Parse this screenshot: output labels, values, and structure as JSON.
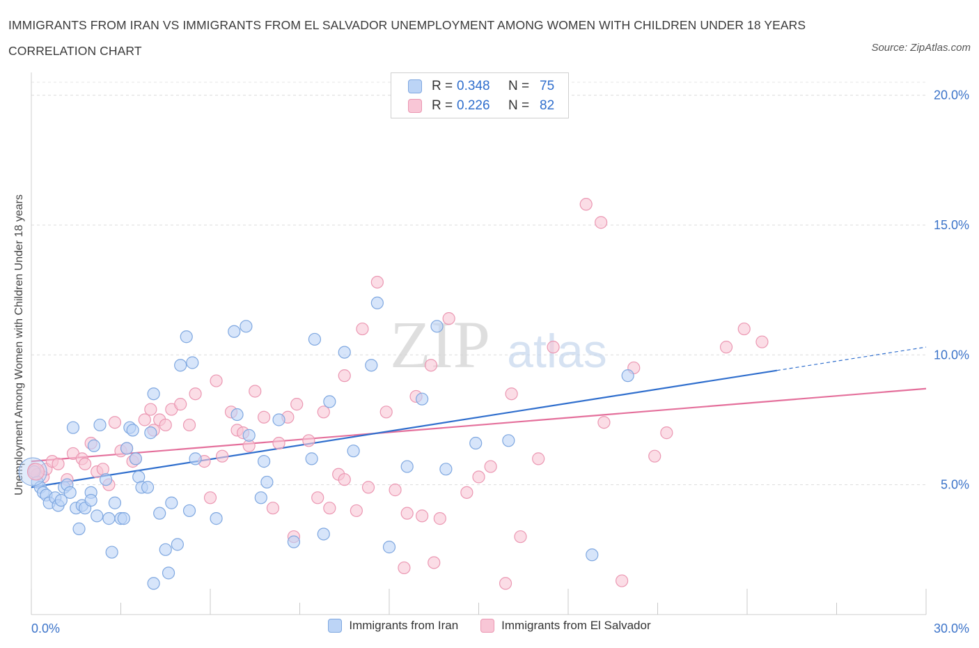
{
  "header": {
    "title": "IMMIGRANTS FROM IRAN VS IMMIGRANTS FROM EL SALVADOR UNEMPLOYMENT AMONG WOMEN WITH CHILDREN UNDER 18 YEARS CORRELATION CHART",
    "source": "Source: ZipAtlas.com"
  },
  "watermark": {
    "zip": "ZIP",
    "atlas": "atlas"
  },
  "legend": {
    "iran": {
      "r_label": "R =",
      "r_value": "0.348",
      "n_label": "N =",
      "n_value": "75",
      "name": "Immigrants from Iran"
    },
    "salvador": {
      "r_label": "R =",
      "r_value": "0.226",
      "n_label": "N =",
      "n_value": "82",
      "name": "Immigrants from El Salvador"
    }
  },
  "colors": {
    "iran_fill": "#bcd4f6",
    "iran_stroke": "#7ea7e0",
    "iran_line": "#2f6ecd",
    "salvador_fill": "#f8c6d6",
    "salvador_stroke": "#eb97b2",
    "salvador_line": "#e46f9b",
    "tick_label": "#3b73c9"
  },
  "chart_data": {
    "type": "scatter",
    "title": "IMMIGRANTS FROM IRAN VS IMMIGRANTS FROM EL SALVADOR UNEMPLOYMENT AMONG WOMEN WITH CHILDREN UNDER 18 YEARS CORRELATION CHART",
    "xlabel": "",
    "ylabel": "Unemployment Among Women with Children Under 18 years",
    "xlim": [
      0,
      30
    ],
    "ylim": [
      0,
      20.5
    ],
    "x_tick_labels": [
      {
        "value": 0,
        "label": "0.0%"
      },
      {
        "value": 30,
        "label": "30.0%"
      }
    ],
    "y_tick_labels": [
      {
        "value": 5,
        "label": "5.0%"
      },
      {
        "value": 10,
        "label": "10.0%"
      },
      {
        "value": 15,
        "label": "15.0%"
      },
      {
        "value": 20,
        "label": "20.0%"
      }
    ],
    "grid": true,
    "series": [
      {
        "name": "Immigrants from Iran",
        "r": 0.348,
        "n": 75,
        "trend": {
          "x0": 0,
          "y0": 4.9,
          "x1": 25,
          "y1": 9.4,
          "dash_to_x": 30,
          "dash_to_y": 10.3
        },
        "points": [
          [
            0.1,
            5.5
          ],
          [
            0.2,
            5.1
          ],
          [
            0.3,
            4.9
          ],
          [
            0.4,
            4.7
          ],
          [
            0.5,
            4.6
          ],
          [
            0.6,
            4.3
          ],
          [
            0.8,
            4.5
          ],
          [
            0.9,
            4.2
          ],
          [
            1.0,
            4.4
          ],
          [
            1.1,
            4.9
          ],
          [
            1.2,
            5.0
          ],
          [
            1.3,
            4.7
          ],
          [
            1.4,
            7.2
          ],
          [
            1.5,
            4.1
          ],
          [
            1.6,
            3.3
          ],
          [
            1.7,
            4.2
          ],
          [
            1.8,
            4.1
          ],
          [
            2.0,
            4.7
          ],
          [
            2.0,
            4.4
          ],
          [
            2.1,
            6.5
          ],
          [
            2.2,
            3.8
          ],
          [
            2.3,
            7.3
          ],
          [
            2.5,
            5.2
          ],
          [
            2.6,
            3.7
          ],
          [
            2.7,
            2.4
          ],
          [
            2.8,
            4.3
          ],
          [
            3.0,
            3.7
          ],
          [
            3.1,
            3.7
          ],
          [
            3.2,
            6.4
          ],
          [
            3.3,
            7.2
          ],
          [
            3.4,
            7.1
          ],
          [
            3.5,
            6.0
          ],
          [
            3.6,
            5.3
          ],
          [
            3.7,
            4.9
          ],
          [
            3.9,
            4.9
          ],
          [
            4.0,
            7.0
          ],
          [
            4.1,
            8.5
          ],
          [
            4.1,
            1.2
          ],
          [
            4.3,
            3.9
          ],
          [
            4.5,
            2.5
          ],
          [
            4.6,
            1.6
          ],
          [
            4.7,
            4.3
          ],
          [
            4.9,
            2.7
          ],
          [
            5.0,
            9.6
          ],
          [
            5.2,
            10.7
          ],
          [
            5.3,
            4.0
          ],
          [
            5.4,
            9.7
          ],
          [
            5.5,
            6.0
          ],
          [
            6.2,
            3.7
          ],
          [
            6.8,
            10.9
          ],
          [
            6.9,
            7.7
          ],
          [
            7.2,
            11.1
          ],
          [
            7.3,
            6.9
          ],
          [
            7.7,
            4.5
          ],
          [
            7.8,
            5.9
          ],
          [
            7.9,
            5.1
          ],
          [
            8.3,
            7.5
          ],
          [
            8.8,
            2.8
          ],
          [
            9.4,
            6.0
          ],
          [
            9.5,
            10.6
          ],
          [
            9.8,
            3.1
          ],
          [
            10.0,
            8.2
          ],
          [
            10.5,
            10.1
          ],
          [
            10.8,
            6.3
          ],
          [
            11.4,
            9.6
          ],
          [
            11.6,
            12.0
          ],
          [
            12.0,
            2.6
          ],
          [
            12.6,
            5.7
          ],
          [
            13.1,
            8.3
          ],
          [
            13.6,
            11.1
          ],
          [
            13.9,
            5.6
          ],
          [
            14.9,
            6.6
          ],
          [
            16.0,
            6.7
          ],
          [
            18.8,
            2.3
          ],
          [
            20.0,
            9.2
          ]
        ]
      },
      {
        "name": "Immigrants from El Salvador",
        "r": 0.226,
        "n": 82,
        "trend": {
          "x0": 0,
          "y0": 5.9,
          "x1": 30,
          "y1": 8.7
        },
        "points": [
          [
            0.1,
            5.6
          ],
          [
            0.2,
            5.4
          ],
          [
            0.4,
            5.3
          ],
          [
            0.5,
            5.6
          ],
          [
            0.7,
            5.9
          ],
          [
            0.9,
            5.8
          ],
          [
            1.2,
            5.2
          ],
          [
            1.4,
            6.2
          ],
          [
            1.7,
            6.0
          ],
          [
            1.8,
            5.8
          ],
          [
            2.0,
            6.6
          ],
          [
            2.2,
            5.5
          ],
          [
            2.4,
            5.6
          ],
          [
            2.6,
            5.0
          ],
          [
            2.8,
            7.4
          ],
          [
            3.0,
            6.3
          ],
          [
            3.2,
            6.4
          ],
          [
            3.4,
            5.9
          ],
          [
            3.5,
            6.0
          ],
          [
            3.8,
            7.5
          ],
          [
            4.0,
            7.9
          ],
          [
            4.1,
            7.1
          ],
          [
            4.3,
            7.5
          ],
          [
            4.5,
            7.3
          ],
          [
            4.7,
            7.9
          ],
          [
            5.0,
            8.1
          ],
          [
            5.3,
            7.3
          ],
          [
            5.5,
            8.5
          ],
          [
            5.8,
            5.9
          ],
          [
            6.0,
            4.5
          ],
          [
            6.2,
            9.0
          ],
          [
            6.4,
            6.1
          ],
          [
            6.7,
            7.8
          ],
          [
            6.9,
            7.1
          ],
          [
            7.1,
            7.0
          ],
          [
            7.3,
            6.5
          ],
          [
            7.5,
            8.6
          ],
          [
            7.8,
            7.6
          ],
          [
            8.1,
            4.1
          ],
          [
            8.3,
            6.6
          ],
          [
            8.6,
            7.6
          ],
          [
            8.8,
            3.0
          ],
          [
            8.9,
            8.1
          ],
          [
            9.3,
            6.7
          ],
          [
            9.6,
            4.5
          ],
          [
            9.8,
            7.8
          ],
          [
            10.0,
            4.1
          ],
          [
            10.3,
            5.4
          ],
          [
            10.5,
            5.2
          ],
          [
            10.5,
            9.2
          ],
          [
            10.9,
            4.0
          ],
          [
            11.1,
            11.0
          ],
          [
            11.3,
            4.9
          ],
          [
            11.6,
            12.8
          ],
          [
            11.9,
            7.8
          ],
          [
            12.2,
            4.8
          ],
          [
            12.6,
            3.9
          ],
          [
            12.9,
            8.4
          ],
          [
            13.1,
            3.8
          ],
          [
            13.4,
            9.6
          ],
          [
            13.5,
            2.0
          ],
          [
            13.7,
            3.7
          ],
          [
            14.0,
            11.4
          ],
          [
            14.6,
            4.7
          ],
          [
            15.0,
            5.3
          ],
          [
            15.4,
            5.7
          ],
          [
            15.9,
            1.2
          ],
          [
            16.1,
            8.5
          ],
          [
            16.4,
            3.0
          ],
          [
            17.0,
            6.0
          ],
          [
            17.5,
            10.3
          ],
          [
            18.6,
            15.8
          ],
          [
            19.1,
            15.1
          ],
          [
            19.2,
            7.4
          ],
          [
            19.8,
            1.3
          ],
          [
            20.2,
            9.5
          ],
          [
            20.9,
            6.1
          ],
          [
            21.3,
            7.0
          ],
          [
            23.3,
            10.3
          ],
          [
            23.9,
            11.0
          ],
          [
            24.5,
            10.5
          ],
          [
            12.5,
            1.8
          ]
        ]
      }
    ]
  }
}
